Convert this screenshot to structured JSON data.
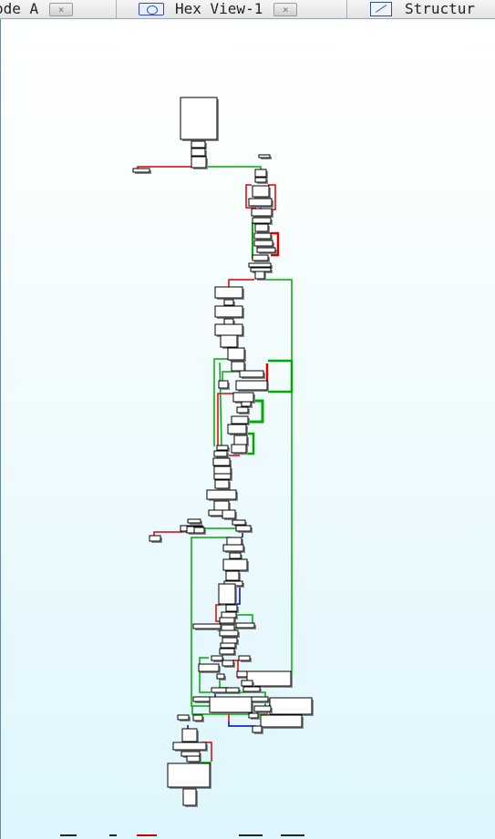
{
  "tabs": [
    {
      "label": "ode A",
      "icon": "code-icon",
      "closable": true
    },
    {
      "label": "Hex View-1",
      "icon": "hex-view-icon",
      "closable": true
    },
    {
      "label": "Structur",
      "icon": "structures-icon",
      "closable": false
    }
  ],
  "tab_close_glyph": "×",
  "graph": {
    "edge_colors": {
      "true": "#00aa00",
      "false": "#dd0000",
      "unconditional": "#0000cc"
    },
    "node_fill": "#ffffff",
    "node_border": "#000000"
  }
}
